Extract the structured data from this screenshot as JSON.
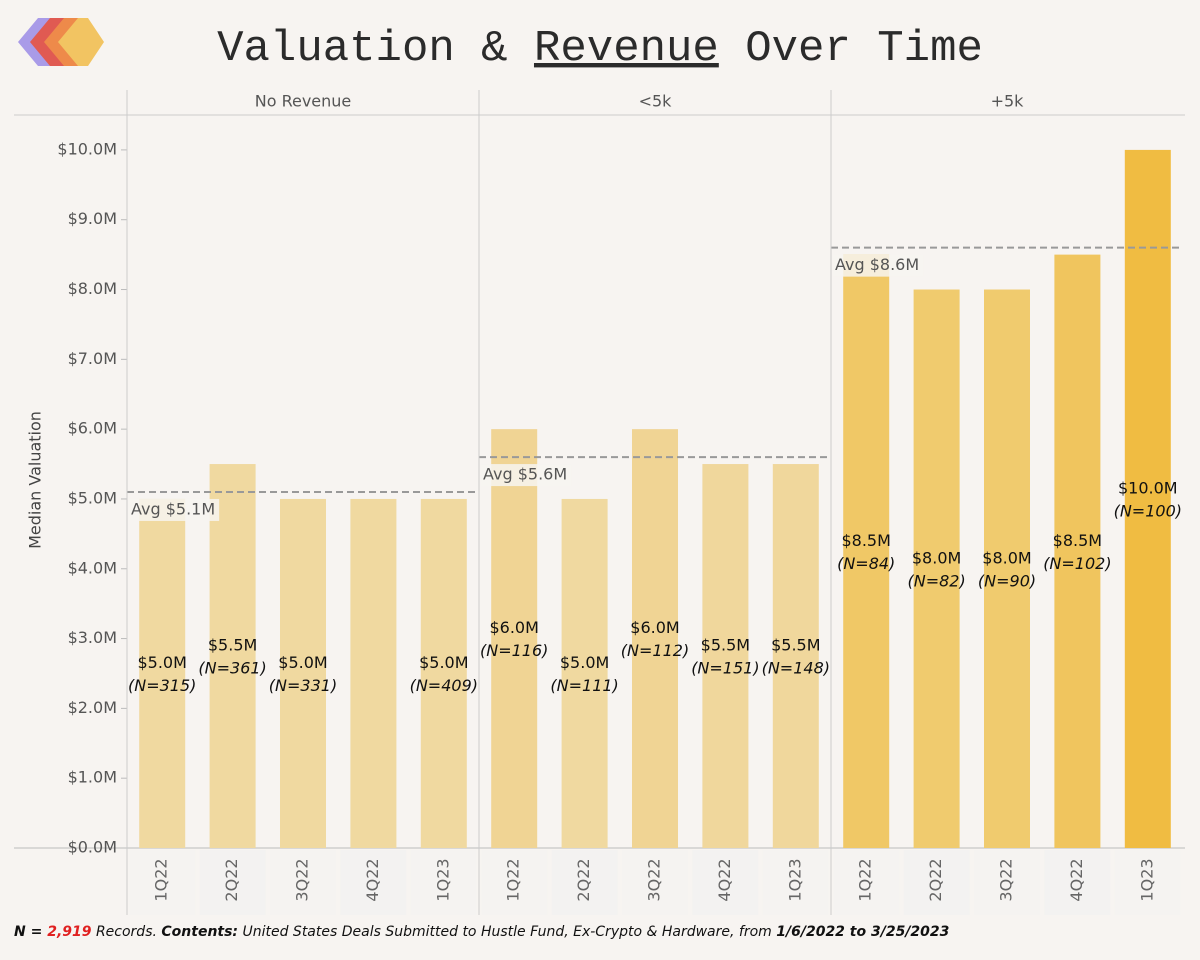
{
  "chart_data": {
    "type": "bar",
    "title_parts": [
      "Valuation & ",
      "Revenue",
      " Over Time"
    ],
    "ylabel": "Median Valuation",
    "ylim": [
      0,
      10.5
    ],
    "yticks": [
      {
        "value": 0,
        "label": "$0.0M"
      },
      {
        "value": 1,
        "label": "$1.0M"
      },
      {
        "value": 2,
        "label": "$2.0M"
      },
      {
        "value": 3,
        "label": "$3.0M"
      },
      {
        "value": 4,
        "label": "$4.0M"
      },
      {
        "value": 5,
        "label": "$5.0M"
      },
      {
        "value": 6,
        "label": "$6.0M"
      },
      {
        "value": 7,
        "label": "$7.0M"
      },
      {
        "value": 8,
        "label": "$8.0M"
      },
      {
        "value": 9,
        "label": "$9.0M"
      },
      {
        "value": 10,
        "label": "$10.0M"
      }
    ],
    "facets": [
      {
        "title": "No Revenue",
        "categories": [
          "1Q22",
          "2Q22",
          "3Q22",
          "4Q22",
          "1Q23"
        ],
        "values": [
          5.0,
          5.5,
          5.0,
          5.0,
          5.0
        ],
        "value_labels": [
          "$5.0M",
          "$5.5M",
          "$5.0M",
          null,
          "$5.0M"
        ],
        "n_labels": [
          "(N=315)",
          "(N=361)",
          "(N=331)",
          null,
          "(N=409)"
        ],
        "colors": [
          "#f0d9a0",
          "#f0d9a0",
          "#f0d9a0",
          "#f0d9a0",
          "#f0d9a0"
        ],
        "average": 5.1,
        "average_label": "Avg $5.1M"
      },
      {
        "title": "<5k",
        "categories": [
          "1Q22",
          "2Q22",
          "3Q22",
          "4Q22",
          "1Q23"
        ],
        "values": [
          6.0,
          5.0,
          6.0,
          5.5,
          5.5
        ],
        "value_labels": [
          "$6.0M",
          "$5.0M",
          "$6.0M",
          "$5.5M",
          "$5.5M"
        ],
        "n_labels": [
          "(N=116)",
          "(N=111)",
          "(N=112)",
          "(N=151)",
          "(N=148)"
        ],
        "colors": [
          "#f0d494",
          "#f0d9a0",
          "#f0d494",
          "#f0d79c",
          "#f0d79c"
        ],
        "average": 5.6,
        "average_label": "Avg $5.6M"
      },
      {
        "title": "+5k",
        "categories": [
          "1Q22",
          "2Q22",
          "3Q22",
          "4Q22",
          "1Q23"
        ],
        "values": [
          8.5,
          8.0,
          8.0,
          8.5,
          10.0
        ],
        "value_labels": [
          "$8.5M",
          "$8.0M",
          "$8.0M",
          "$8.5M",
          "$10.0M"
        ],
        "n_labels": [
          "(N=84)",
          "(N=82)",
          "(N=90)",
          "(N=102)",
          "(N=100)"
        ],
        "colors": [
          "#f0c866",
          "#f0cb6e",
          "#f0cb6e",
          "#f0c55e",
          "#f0bc42"
        ],
        "average": 8.6,
        "average_label": "Avg $8.6M"
      }
    ],
    "footnote_parts": [
      "N = ",
      "2,919",
      " Records. ",
      "Contents:",
      " United States Deals Submitted to Hustle Fund, Ex-Crypto & Hardware, from ",
      "1/6/2022 to 3/25/2023"
    ]
  }
}
